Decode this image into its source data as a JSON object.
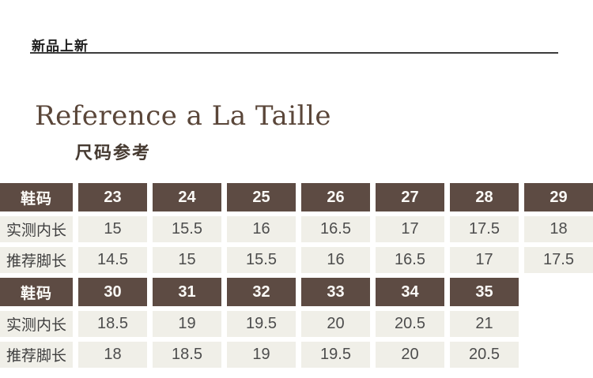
{
  "header": {
    "badge": "新品上新"
  },
  "title": {
    "en": "Reference a La Taille",
    "zh": "尺码参考"
  },
  "size_table": {
    "sections": [
      {
        "header_label": "鞋码",
        "sizes": [
          "23",
          "24",
          "25",
          "26",
          "27",
          "28",
          "29"
        ],
        "rows": [
          {
            "label": "实测内长",
            "values": [
              "15",
              "15.5",
              "16",
              "16.5",
              "17",
              "17.5",
              "18"
            ]
          },
          {
            "label": "推荐脚长",
            "values": [
              "14.5",
              "15",
              "15.5",
              "16",
              "16.5",
              "17",
              "17.5"
            ]
          }
        ]
      },
      {
        "header_label": "鞋码",
        "sizes": [
          "30",
          "31",
          "32",
          "33",
          "34",
          "35",
          ""
        ],
        "rows": [
          {
            "label": "实测内长",
            "values": [
              "18.5",
              "19",
              "19.5",
              "20",
              "20.5",
              "21",
              ""
            ]
          },
          {
            "label": "推荐脚长",
            "values": [
              "18",
              "18.5",
              "19",
              "19.5",
              "20",
              "20.5",
              ""
            ]
          }
        ]
      }
    ]
  },
  "colors": {
    "table_header_bg": "#5d4b43",
    "table_cell_bg": "#f0efe8",
    "title_text": "#5a4639",
    "subtitle_text": "#463a31",
    "rule": "#3c3c3c"
  }
}
